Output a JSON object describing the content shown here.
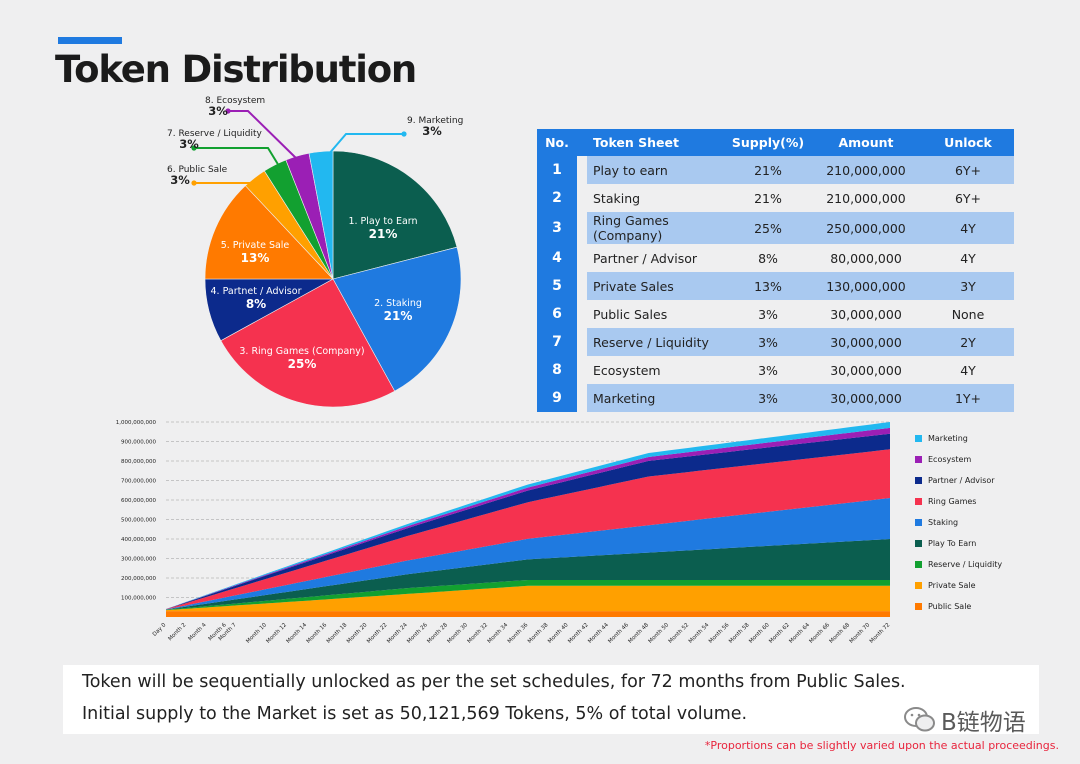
{
  "title": "Token Distribution",
  "pie": {
    "slices": [
      {
        "line1": "1. Play to Earn",
        "pct": "21%",
        "value": 21,
        "color": "#0b5e4f"
      },
      {
        "line1": "2. Staking",
        "pct": "21%",
        "value": 21,
        "color": "#1f7ae0"
      },
      {
        "line1": "3. Ring Games (Company)",
        "pct": "25%",
        "value": 25,
        "color": "#f5324f"
      },
      {
        "line1": "4. Partnet / Advisor",
        "pct": "8%",
        "value": 8,
        "color": "#0c2a8c"
      },
      {
        "line1": "5. Private Sale",
        "pct": "13%",
        "value": 13,
        "color": "#ff7a00"
      },
      {
        "line1": "6. Public Sale",
        "pct": "3%",
        "value": 3,
        "color": "#ffa000"
      },
      {
        "line1": "7. Reserve / Liquidity",
        "pct": "3%",
        "value": 3,
        "color": "#12a030"
      },
      {
        "line1": "8. Ecosystem",
        "pct": "3%",
        "value": 3,
        "color": "#9b1fb5"
      },
      {
        "line1": "9. Marketing",
        "pct": "3%",
        "value": 3,
        "color": "#22b8f0"
      }
    ]
  },
  "table": {
    "headers": [
      "No.",
      "Token Sheet",
      "Supply(%)",
      "Amount",
      "Unlock"
    ],
    "rows": [
      {
        "no": "1",
        "name": "Play to earn",
        "supply": "21%",
        "amount": "210,000,000",
        "unlock": "6Y+"
      },
      {
        "no": "2",
        "name": "Staking",
        "supply": "21%",
        "amount": "210,000,000",
        "unlock": "6Y+"
      },
      {
        "no": "3",
        "name": "Ring Games (Company)",
        "supply": "25%",
        "amount": "250,000,000",
        "unlock": "4Y"
      },
      {
        "no": "4",
        "name": "Partner / Advisor",
        "supply": "8%",
        "amount": "80,000,000",
        "unlock": "4Y"
      },
      {
        "no": "5",
        "name": "Private Sales",
        "supply": "13%",
        "amount": "130,000,000",
        "unlock": "3Y"
      },
      {
        "no": "6",
        "name": "Public Sales",
        "supply": "3%",
        "amount": "30,000,000",
        "unlock": "None"
      },
      {
        "no": "7",
        "name": "Reserve / Liquidity",
        "supply": "3%",
        "amount": "30,000,000",
        "unlock": "2Y"
      },
      {
        "no": "8",
        "name": "Ecosystem",
        "supply": "3%",
        "amount": "30,000,000",
        "unlock": "4Y"
      },
      {
        "no": "9",
        "name": "Marketing",
        "supply": "3%",
        "amount": "30,000,000",
        "unlock": "1Y+"
      }
    ]
  },
  "chart_data": [
    {
      "type": "pie",
      "title": "",
      "categories": [
        "1. Play to Earn",
        "2. Staking",
        "3. Ring Games (Company)",
        "4. Partnet / Advisor",
        "5. Private Sale",
        "6. Public Sale",
        "7. Reserve / Liquidity",
        "8. Ecosystem",
        "9. Marketing"
      ],
      "values": [
        21,
        21,
        25,
        8,
        13,
        3,
        3,
        3,
        3
      ]
    },
    {
      "type": "area",
      "stacked": true,
      "y_tick_labels": [
        "1,000,000,000",
        "900,000,000",
        "800,000,000",
        "700,000,000",
        "600,000,000",
        "500,000,000",
        "400,000,000",
        "300,000,000",
        "200,000,000",
        "100,000,000"
      ],
      "ylim": [
        0,
        1000000000
      ],
      "categories": [
        "Day 0",
        "Month 2",
        "Month 4",
        "Month 6",
        "Month 7",
        "Month 10",
        "Month 12",
        "Month 14",
        "Month 16",
        "Month 18",
        "Month 20",
        "Month 22",
        "Month 24",
        "Month 26",
        "Month 28",
        "Month 30",
        "Month 32",
        "Month 34",
        "Month 36",
        "Month 38",
        "Month 40",
        "Month 42",
        "Month 44",
        "Month 46",
        "Month 48",
        "Month 50",
        "Month 52",
        "Month 54",
        "Month 56",
        "Month 58",
        "Month 60",
        "Month 62",
        "Month 64",
        "Month 66",
        "Month 68",
        "Month 70",
        "Month 72"
      ],
      "months": [
        0,
        2,
        4,
        6,
        7,
        10,
        12,
        14,
        16,
        18,
        20,
        22,
        24,
        26,
        28,
        30,
        32,
        34,
        36,
        38,
        40,
        42,
        44,
        46,
        48,
        50,
        52,
        54,
        56,
        58,
        60,
        62,
        64,
        66,
        68,
        70,
        72
      ],
      "series": [
        {
          "name": "Public Sale",
          "color": "#ff7a00",
          "points": [
            [
              0,
              30000000
            ],
            [
              72,
              30000000
            ]
          ]
        },
        {
          "name": "Private Sale",
          "color": "#ffa000",
          "points": [
            [
              0,
              5000000
            ],
            [
              36,
              130000000
            ],
            [
              72,
              130000000
            ]
          ]
        },
        {
          "name": "Reserve / Liquidity",
          "color": "#12a030",
          "points": [
            [
              0,
              2000000
            ],
            [
              24,
              30000000
            ],
            [
              72,
              30000000
            ]
          ]
        },
        {
          "name": "Play To Earn",
          "color": "#0b5e4f",
          "points": [
            [
              0,
              1000000
            ],
            [
              72,
              210000000
            ]
          ]
        },
        {
          "name": "Staking",
          "color": "#1f7ae0",
          "points": [
            [
              0,
              1000000
            ],
            [
              72,
              210000000
            ]
          ]
        },
        {
          "name": "Ring Games",
          "color": "#f5324f",
          "points": [
            [
              0,
              1000000
            ],
            [
              48,
              250000000
            ],
            [
              72,
              250000000
            ]
          ]
        },
        {
          "name": "Partner / Advisor",
          "color": "#0c2a8c",
          "points": [
            [
              0,
              500000
            ],
            [
              48,
              80000000
            ],
            [
              72,
              80000000
            ]
          ]
        },
        {
          "name": "Ecosystem",
          "color": "#9b1fb5",
          "points": [
            [
              0,
              300000
            ],
            [
              48,
              20000000
            ],
            [
              72,
              30000000
            ]
          ]
        },
        {
          "name": "Marketing",
          "color": "#22b8f0",
          "points": [
            [
              0,
              300000
            ],
            [
              12,
              6000000
            ],
            [
              72,
              30000000
            ]
          ]
        }
      ],
      "legend": [
        "Marketing",
        "Ecosystem",
        "Partner / Advisor",
        "Ring Games",
        "Staking",
        "Play To Earn",
        "Reserve / Liquidity",
        "Private Sale",
        "Public Sale"
      ],
      "legend_colors": [
        "#22b8f0",
        "#9b1fb5",
        "#0c2a8c",
        "#f5324f",
        "#1f7ae0",
        "#0b5e4f",
        "#12a030",
        "#ffa000",
        "#ff7a00"
      ]
    }
  ],
  "notes": {
    "line1": "Token will be sequentially unlocked as per the set schedules, for 72 months from Public Sales.",
    "line2": "Initial supply to the Market is set as 50,121,569 Tokens, 5% of total volume."
  },
  "disclaimer": "*Proportions can be slightly varied upon the actual proceedings.",
  "watermark": "B链物语"
}
